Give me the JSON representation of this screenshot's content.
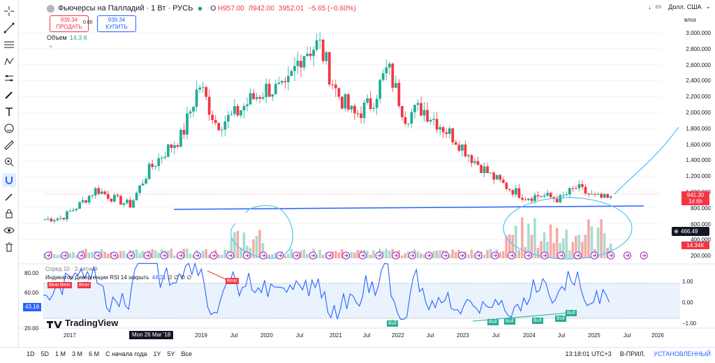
{
  "header": {
    "symbol_title": "Фьючерсы на Палладий · 1 Вт · РУСЬ",
    "ohlc": [
      {
        "k": "О",
        "v": "Н957.00"
      },
      {
        "k": "",
        "v": "Л942.00"
      },
      {
        "k": "",
        "v": "З952.01"
      },
      {
        "k": "",
        "v": "−5.65 (−0.60%)"
      }
    ],
    "sell_price": "939.34",
    "sell_label": "ПРОДАТЬ",
    "spread": "0.00",
    "buy_price": "939.34",
    "buy_label": "КУПИТЬ",
    "volume_label": "Объем",
    "volume_value": "14.3 К",
    "currency": "Долл. США",
    "scale_mode": "влоз"
  },
  "colors": {
    "up": "#22ab94",
    "down": "#f23645",
    "rsi": "#2962ff",
    "annotation": "#4fc3f7",
    "hline": "#2962ff"
  },
  "price_axis": [
    "3,000.000",
    "2,800.000",
    "2,600.000",
    "2,400.000",
    "2,200.000",
    "2,000.000",
    "1,800.000",
    "1,600.000",
    "1,400.000",
    "1,200.000",
    "1,000.000",
    "800.000",
    "600.000",
    "400.000",
    "200.000"
  ],
  "last_price": {
    "value": "941.30",
    "countdown": "1d 6h"
  },
  "crosshair_price": "466.49",
  "volume_badge": "14.34K",
  "rsi": {
    "spread_label": "Спред 10 · 2-летний",
    "title": "Индикатор Дивергенции RSI 14 закрыть",
    "value": "44.21",
    "extras": "∅ ∅ ∅ ∅",
    "current_badge": "43.18",
    "left_axis": [
      "80.00",
      "60.00",
      "20.00"
    ],
    "right_axis": [
      "1.00",
      "0.00",
      "−1.00"
    ],
    "bear_labels": [
      "Bear",
      "Bear",
      "Bear",
      "Bear"
    ],
    "bull_labels": [
      "Bull",
      "Bull",
      "Bull",
      "Bull",
      "Bull",
      "Bull"
    ]
  },
  "brand": "TradingView",
  "time_axis": {
    "labels": [
      "2017",
      "2019",
      "Jul",
      "2020",
      "Jul",
      "2021",
      "Jul",
      "2022",
      "Jul",
      "2023",
      "Jul",
      "2024",
      "Jul",
      "2025",
      "Jul",
      "2026"
    ],
    "crosshair_date": "Mon 26 Mar '18"
  },
  "bottom_bar": {
    "ranges": [
      "1D",
      "5D",
      "1 М",
      "3 М",
      "6 М",
      "С начала года",
      "1Y",
      "5Y",
      "Все"
    ],
    "clock": "13:18:01 UTC+3",
    "session": "В-ПРИЛ.",
    "status": "УСТАНОВЛЕННЫЙ"
  },
  "chart_data": {
    "type": "candlestick",
    "interval": "weekly",
    "price_scale": "log",
    "x": [
      "2016-10",
      "2017-01",
      "2017-07",
      "2018-01",
      "2018-03",
      "2018-07",
      "2019-01",
      "2019-07",
      "2019-10",
      "2020-01",
      "2020-03",
      "2020-05",
      "2020-07",
      "2020-10",
      "2021-01",
      "2021-04",
      "2021-05",
      "2021-08",
      "2021-11",
      "2022-01",
      "2022-03",
      "2022-05",
      "2022-08",
      "2022-11",
      "2023-01",
      "2023-04",
      "2023-07",
      "2023-10",
      "2024-01",
      "2024-04",
      "2024-07",
      "2024-10",
      "2025-01",
      "2025-04"
    ],
    "close": [
      700,
      720,
      880,
      1080,
      960,
      880,
      1300,
      1550,
      1750,
      2400,
      1900,
      2000,
      2200,
      2350,
      2300,
      2800,
      2900,
      2300,
      2000,
      2150,
      2600,
      2000,
      2100,
      1900,
      1700,
      1450,
      1250,
      1100,
      980,
      1000,
      950,
      1100,
      980,
      950
    ],
    "hline": 860,
    "rsi_range": [
      20,
      80
    ],
    "projection": "up"
  }
}
